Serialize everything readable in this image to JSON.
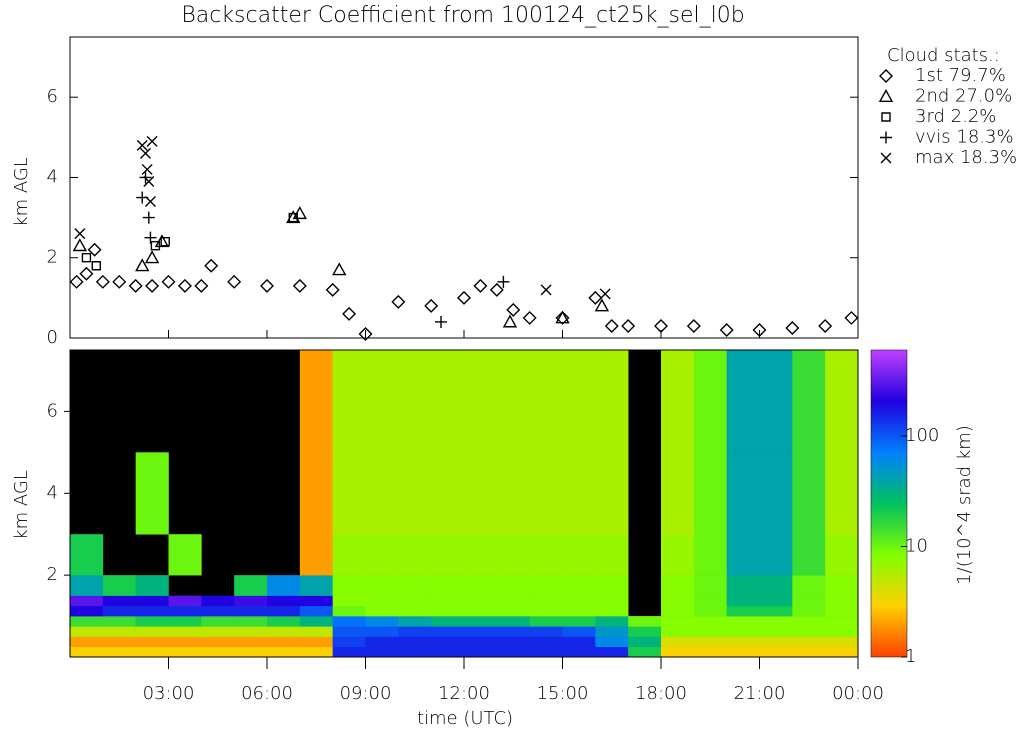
{
  "chart_data": [
    {
      "type": "scatter",
      "title": "Backscatter Coefficient from 100124_ct25k_sel_l0b",
      "ylabel": "km AGL",
      "xlim": [
        0,
        24
      ],
      "ylim": [
        0,
        7.5
      ],
      "yticks": [
        0,
        2,
        4,
        6
      ],
      "legend_title": "Cloud stats.:",
      "legend": "upper right",
      "color": "#000000",
      "series": [
        {
          "name": "1st 79.7%",
          "marker": "diamond",
          "x": [
            0.2,
            0.5,
            0.75,
            1,
            1.5,
            2,
            2.5,
            3,
            3.5,
            4,
            4.3,
            5,
            6,
            7,
            8,
            8.5,
            9,
            10,
            11,
            12,
            12.5,
            13,
            13.5,
            14,
            15,
            16,
            16.5,
            17,
            18,
            19,
            20,
            21,
            22,
            23,
            23.8
          ],
          "values": [
            1.4,
            1.6,
            2.2,
            1.4,
            1.4,
            1.3,
            1.3,
            1.4,
            1.3,
            1.3,
            1.8,
            1.4,
            1.3,
            1.3,
            1.2,
            0.6,
            0.1,
            0.9,
            0.8,
            1.0,
            1.3,
            1.2,
            0.7,
            0.5,
            0.5,
            1.0,
            0.3,
            0.3,
            0.3,
            0.3,
            0.2,
            0.2,
            0.25,
            0.3,
            0.5
          ]
        },
        {
          "name": "2nd 27.0%",
          "marker": "triangle",
          "x": [
            0.3,
            2.2,
            2.5,
            2.8,
            6.8,
            7,
            8.2,
            13.4,
            15,
            16.2
          ],
          "values": [
            2.3,
            1.8,
            2.0,
            2.4,
            3.0,
            3.1,
            1.7,
            0.4,
            0.5,
            0.8
          ]
        },
        {
          "name": "3rd  2.2%",
          "marker": "square",
          "x": [
            0.5,
            0.8,
            2.6,
            2.9,
            6.8
          ],
          "values": [
            2.0,
            1.8,
            2.3,
            2.4,
            3.0
          ]
        },
        {
          "name": "vvis 18.3%",
          "marker": "plus",
          "x": [
            2.2,
            2.3,
            2.4,
            2.45,
            11.3,
            13.2
          ],
          "values": [
            3.5,
            4.0,
            3.0,
            2.5,
            0.4,
            1.4
          ]
        },
        {
          "name": "max 18.3%",
          "marker": "cross",
          "x": [
            0.3,
            2.2,
            2.3,
            2.35,
            2.4,
            2.45,
            2.5,
            14.5,
            16.3
          ],
          "values": [
            2.6,
            4.8,
            4.6,
            4.2,
            3.9,
            3.4,
            4.9,
            1.2,
            1.1
          ]
        }
      ]
    },
    {
      "type": "heatmap",
      "ylabel": "km AGL",
      "xlabel": "time (UTC)",
      "xlim": [
        0,
        24
      ],
      "ylim": [
        0,
        7.5
      ],
      "yticks": [
        2,
        4,
        6
      ],
      "xticks": [
        {
          "value": 3,
          "label": "03:00"
        },
        {
          "value": 6,
          "label": "06:00"
        },
        {
          "value": 9,
          "label": "09:00"
        },
        {
          "value": 12,
          "label": "12:00"
        },
        {
          "value": 15,
          "label": "15:00"
        },
        {
          "value": 18,
          "label": "18:00"
        },
        {
          "value": 21,
          "label": "21:00"
        },
        {
          "value": 24,
          "label": "00:00"
        }
      ],
      "x_edges": [
        0,
        1,
        2,
        3,
        4,
        5,
        6,
        7,
        8,
        9,
        10,
        11,
        12,
        13,
        14,
        15,
        16,
        17,
        18,
        19,
        20,
        21,
        22,
        23,
        24
      ],
      "y_edges": [
        0,
        0.25,
        0.5,
        0.75,
        1,
        1.25,
        1.5,
        2,
        3,
        5,
        7.5
      ],
      "z": [
        [
          3,
          3,
          3,
          3,
          3,
          3,
          3,
          3,
          150,
          150,
          150,
          150,
          150,
          150,
          150,
          150,
          150,
          20,
          3,
          3,
          3,
          3,
          3,
          3
        ],
        [
          2,
          2,
          2,
          2,
          2,
          2,
          2,
          2,
          120,
          150,
          150,
          150,
          150,
          150,
          150,
          150,
          60,
          30,
          4,
          4,
          4,
          4,
          4,
          4
        ],
        [
          5,
          5,
          5,
          5,
          5,
          5,
          5,
          5,
          100,
          100,
          120,
          120,
          120,
          120,
          120,
          100,
          50,
          20,
          8,
          8,
          8,
          8,
          8,
          8
        ],
        [
          15,
          15,
          20,
          20,
          15,
          15,
          20,
          30,
          80,
          60,
          40,
          30,
          30,
          30,
          20,
          20,
          30,
          10,
          8,
          8,
          8,
          8,
          8,
          8
        ],
        [
          200,
          150,
          150,
          150,
          150,
          150,
          150,
          100,
          10,
          8,
          8,
          8,
          8,
          8,
          8,
          8,
          8,
          null,
          8,
          10,
          20,
          20,
          10,
          8
        ],
        [
          300,
          200,
          200,
          300,
          200,
          250,
          200,
          200,
          8,
          8,
          8,
          8,
          8,
          8,
          8,
          8,
          8,
          null,
          8,
          10,
          30,
          30,
          10,
          8
        ],
        [
          40,
          20,
          30,
          null,
          null,
          20,
          60,
          40,
          8,
          8,
          8,
          8,
          8,
          8,
          8,
          8,
          8,
          null,
          8,
          10,
          30,
          30,
          10,
          8
        ],
        [
          20,
          null,
          null,
          10,
          null,
          null,
          null,
          2,
          7,
          7,
          7,
          7,
          7,
          7,
          7,
          7,
          7,
          null,
          7,
          10,
          40,
          40,
          15,
          7
        ],
        [
          null,
          null,
          10,
          null,
          null,
          null,
          null,
          2,
          6,
          6,
          6,
          6,
          6,
          6,
          6,
          6,
          6,
          null,
          6,
          10,
          40,
          40,
          15,
          6
        ],
        [
          null,
          null,
          null,
          null,
          null,
          null,
          null,
          2,
          6,
          6,
          6,
          6,
          6,
          6,
          6,
          6,
          6,
          null,
          6,
          10,
          40,
          40,
          15,
          6
        ]
      ],
      "clim": [
        1,
        600
      ],
      "clog": true,
      "cticks": [
        1,
        10,
        100
      ],
      "colorbar_label": "1/(10^4 srad km)",
      "colormap": [
        "#ff4000",
        "#ffd000",
        "#80ff00",
        "#00c060",
        "#0080ff",
        "#2000e0",
        "#c040ff"
      ],
      "background": "#000000"
    }
  ]
}
